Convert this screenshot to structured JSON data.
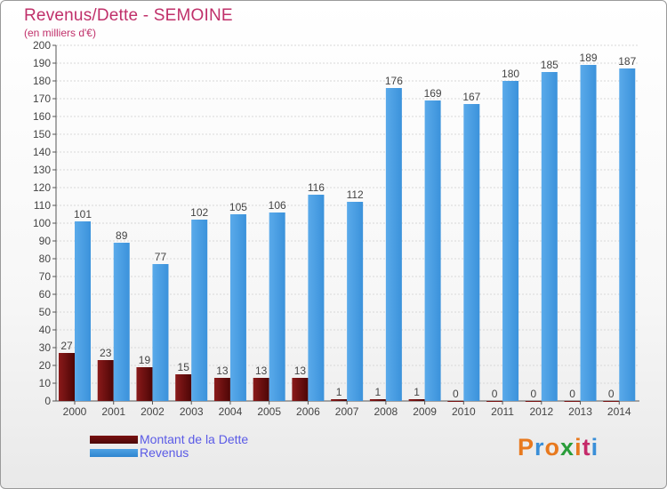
{
  "title": "Revenus/Dette - SEMOINE",
  "subtitle": "(en milliers d'€)",
  "chart_data": {
    "type": "bar",
    "categories": [
      "2000",
      "2001",
      "2002",
      "2003",
      "2004",
      "2005",
      "2006",
      "2007",
      "2008",
      "2009",
      "2010",
      "2011",
      "2012",
      "2013",
      "2014"
    ],
    "series": [
      {
        "name": "Montant de la Dette",
        "values": [
          27,
          23,
          19,
          15,
          13,
          13,
          13,
          1,
          1,
          1,
          0,
          0,
          0,
          0,
          0
        ],
        "color": "#7a1111"
      },
      {
        "name": "Revenus",
        "values": [
          101,
          89,
          77,
          102,
          105,
          106,
          116,
          112,
          176,
          169,
          167,
          180,
          185,
          189,
          187
        ],
        "color": "#4ea2e4"
      }
    ],
    "ylim": [
      0,
      200
    ],
    "yticks": [
      0,
      10,
      20,
      30,
      40,
      50,
      60,
      70,
      80,
      90,
      100,
      110,
      120,
      130,
      140,
      150,
      160,
      170,
      180,
      190,
      200
    ],
    "grid": true,
    "legend_position": "bottom-left"
  },
  "legend": {
    "items": [
      {
        "label": "Montant de la Dette",
        "color": "#7a1111"
      },
      {
        "label": "Revenus",
        "color": "#4ea2e4"
      }
    ]
  },
  "logo": {
    "text": "Proxiti",
    "colors": [
      "#e8791e",
      "#3a8fd8",
      "#e8791e",
      "#2a9d3a",
      "#e8791e",
      "#c52a6a",
      "#3a8fd8"
    ]
  }
}
